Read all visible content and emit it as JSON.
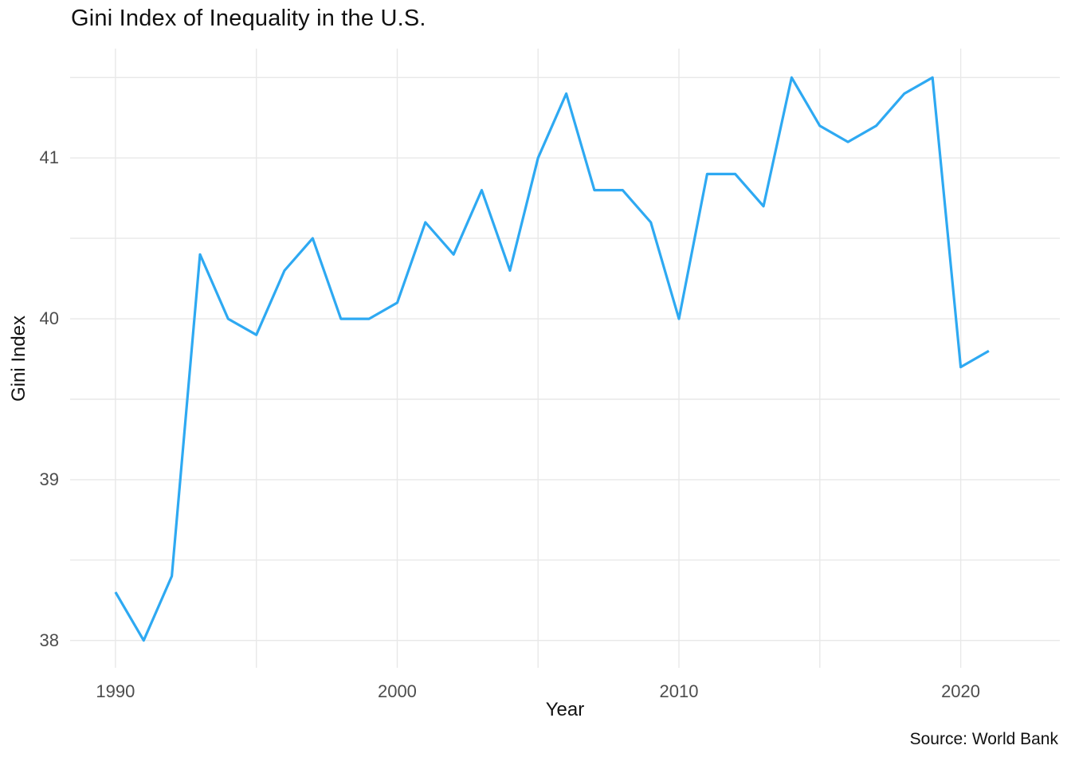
{
  "chart_data": {
    "type": "line",
    "title": "Gini Index of Inequality in the U.S.",
    "xlabel": "Year",
    "ylabel": "Gini Index",
    "caption": "Source: World Bank",
    "x": [
      1990,
      1991,
      1992,
      1993,
      1994,
      1995,
      1996,
      1997,
      1998,
      1999,
      2000,
      2001,
      2002,
      2003,
      2004,
      2005,
      2006,
      2007,
      2008,
      2009,
      2010,
      2011,
      2012,
      2013,
      2014,
      2015,
      2016,
      2017,
      2018,
      2019,
      2020,
      2021
    ],
    "values": [
      38.3,
      38.0,
      38.4,
      40.4,
      40.0,
      39.9,
      40.3,
      40.5,
      40.0,
      40.0,
      40.1,
      40.6,
      40.4,
      40.8,
      40.3,
      41.0,
      41.4,
      40.8,
      40.8,
      40.6,
      40.0,
      40.9,
      40.9,
      40.7,
      41.5,
      41.2,
      41.1,
      41.2,
      41.4,
      41.5,
      39.7,
      39.8
    ],
    "x_domain": [
      1988.39,
      2023.52
    ],
    "y_domain": [
      37.83,
      41.68
    ],
    "x_gridlines": [
      1990,
      1995,
      2000,
      2005,
      2010,
      2015,
      2020
    ],
    "y_gridlines": [
      38,
      38.5,
      39,
      39.5,
      40,
      40.5,
      41,
      41.5
    ],
    "x_ticks_labeled": [
      "1990",
      "2000",
      "2010",
      "2020"
    ],
    "x_ticks_labeled_values": [
      1990,
      2000,
      2010,
      2020
    ],
    "y_ticks_labeled": [
      "38",
      "39",
      "40",
      "41"
    ],
    "y_ticks_labeled_values": [
      38,
      39,
      40,
      41
    ],
    "grid": true,
    "legend_position": "none",
    "line_color": "#2EA9F2",
    "line_width": 3.2,
    "grid_color": "#E8E8E8",
    "tick_label_color": "#4D4D4D",
    "text_color": "#111111",
    "background": "#FFFFFF"
  }
}
